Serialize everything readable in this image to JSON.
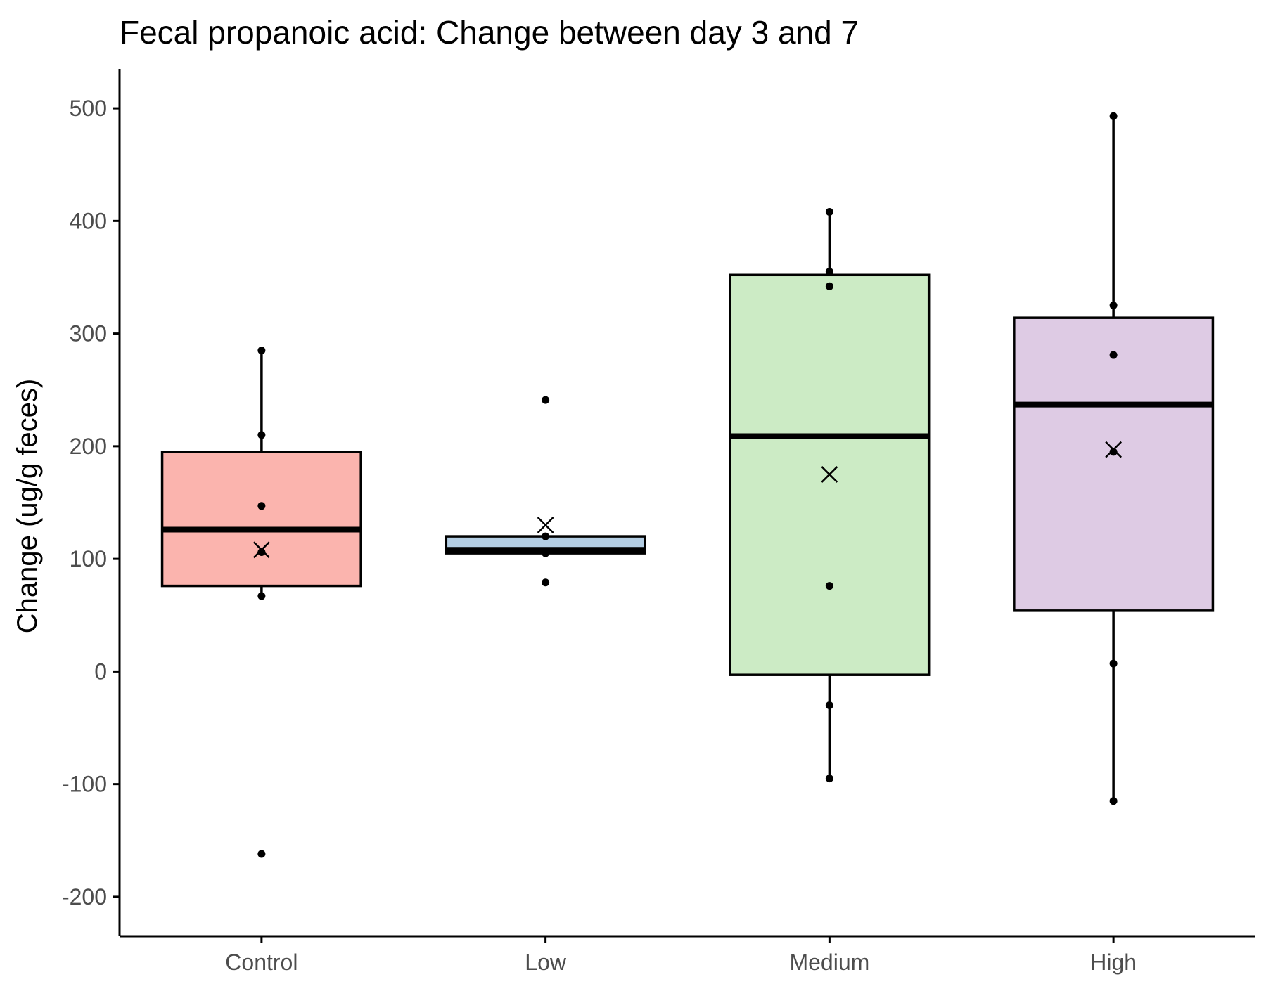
{
  "chart_data": {
    "type": "boxplot",
    "title": "Fecal propanoic acid: Change between day 3 and 7",
    "xlabel": "",
    "ylabel": "Change (ug/g feces)",
    "ylim": [
      -235,
      535
    ],
    "yticks": [
      -200,
      -100,
      0,
      100,
      200,
      300,
      400,
      500
    ],
    "ytick_labels": [
      "-200",
      "-100",
      "0",
      "100",
      "200",
      "300",
      "400",
      "500"
    ],
    "grid": false,
    "legend": "none",
    "categories": [
      "Control",
      "Low",
      "Medium",
      "High"
    ],
    "groups": [
      {
        "category": "Control",
        "fill": "#FBB4AE",
        "q1": 76,
        "median": 126,
        "q3": 195,
        "whisker_low": 67,
        "whisker_high": 285,
        "mean": 108,
        "points": [
          285,
          210,
          147,
          106,
          67,
          -162
        ]
      },
      {
        "category": "Low",
        "fill": "#B3CDE3",
        "q1": 105,
        "median": 108,
        "q3": 120,
        "whisker_low": 105,
        "whisker_high": 120,
        "mean": 130,
        "points": [
          241,
          120,
          105,
          79
        ]
      },
      {
        "category": "Medium",
        "fill": "#CCEBC5",
        "q1": -3,
        "median": 209,
        "q3": 352,
        "whisker_low": -95,
        "whisker_high": 408,
        "mean": 175,
        "points": [
          408,
          355,
          342,
          76,
          -30,
          -95
        ]
      },
      {
        "category": "High",
        "fill": "#DECBE4",
        "q1": 54,
        "median": 237,
        "q3": 314,
        "whisker_low": -115,
        "whisker_high": 493,
        "mean": 197,
        "points": [
          493,
          325,
          281,
          195,
          7,
          -115
        ]
      }
    ]
  }
}
